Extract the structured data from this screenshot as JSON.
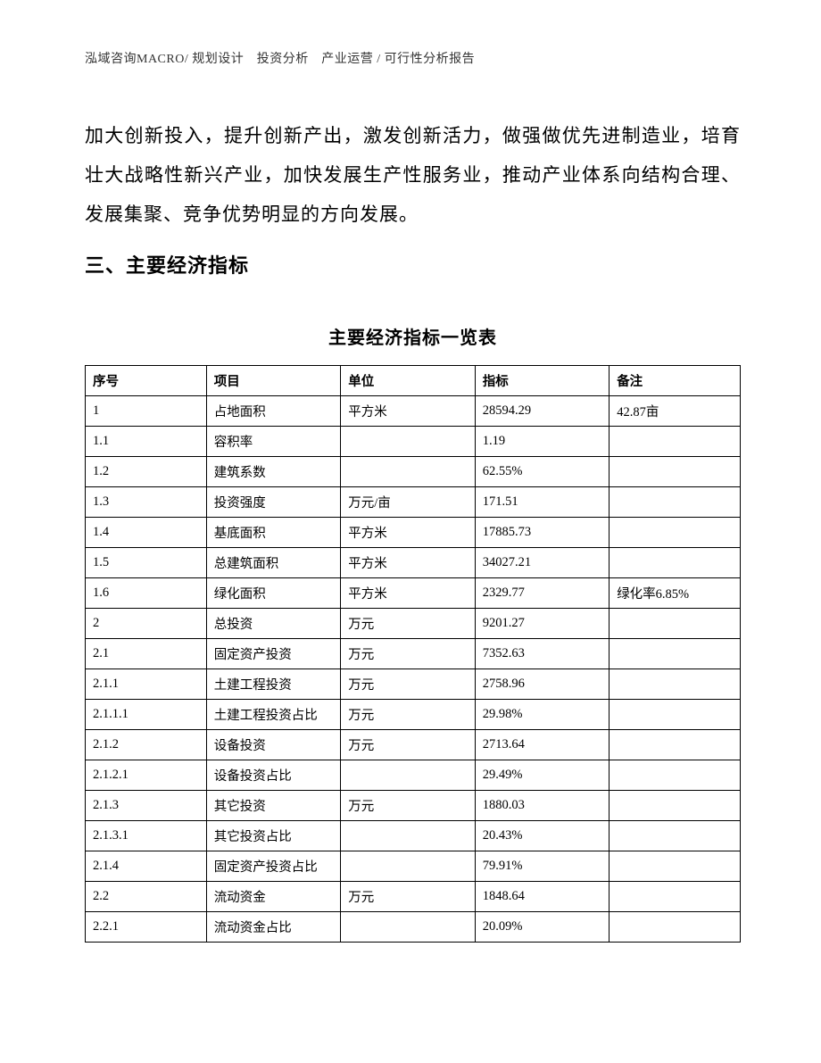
{
  "header": "泓域咨询MACRO/ 规划设计　投资分析　产业运营 / 可行性分析报告",
  "paragraph": "加大创新投入，提升创新产出，激发创新活力，做强做优先进制造业，培育壮大战略性新兴产业，加快发展生产性服务业，推动产业体系向结构合理、发展集聚、竞争优势明显的方向发展。",
  "section_heading": "三、主要经济指标",
  "table_title": "主要经济指标一览表",
  "table": {
    "columns": [
      "序号",
      "项目",
      "单位",
      "指标",
      "备注"
    ],
    "rows": [
      [
        "1",
        "占地面积",
        "平方米",
        "28594.29",
        "42.87亩"
      ],
      [
        "1.1",
        "容积率",
        "",
        "1.19",
        ""
      ],
      [
        "1.2",
        "建筑系数",
        "",
        "62.55%",
        ""
      ],
      [
        "1.3",
        "投资强度",
        "万元/亩",
        "171.51",
        ""
      ],
      [
        "1.4",
        "基底面积",
        "平方米",
        "17885.73",
        ""
      ],
      [
        "1.5",
        "总建筑面积",
        "平方米",
        "34027.21",
        ""
      ],
      [
        "1.6",
        "绿化面积",
        "平方米",
        "2329.77",
        "绿化率6.85%"
      ],
      [
        "2",
        "总投资",
        "万元",
        "9201.27",
        ""
      ],
      [
        "2.1",
        "固定资产投资",
        "万元",
        "7352.63",
        ""
      ],
      [
        "2.1.1",
        "土建工程投资",
        "万元",
        "2758.96",
        ""
      ],
      [
        "2.1.1.1",
        "土建工程投资占比",
        "万元",
        "29.98%",
        ""
      ],
      [
        "2.1.2",
        "设备投资",
        "万元",
        "2713.64",
        ""
      ],
      [
        "2.1.2.1",
        "设备投资占比",
        "",
        "29.49%",
        ""
      ],
      [
        "2.1.3",
        "其它投资",
        "万元",
        "1880.03",
        ""
      ],
      [
        "2.1.3.1",
        "其它投资占比",
        "",
        "20.43%",
        ""
      ],
      [
        "2.1.4",
        "固定资产投资占比",
        "",
        "79.91%",
        ""
      ],
      [
        "2.2",
        "流动资金",
        "万元",
        "1848.64",
        ""
      ],
      [
        "2.2.1",
        "流动资金占比",
        "",
        "20.09%",
        ""
      ]
    ]
  }
}
